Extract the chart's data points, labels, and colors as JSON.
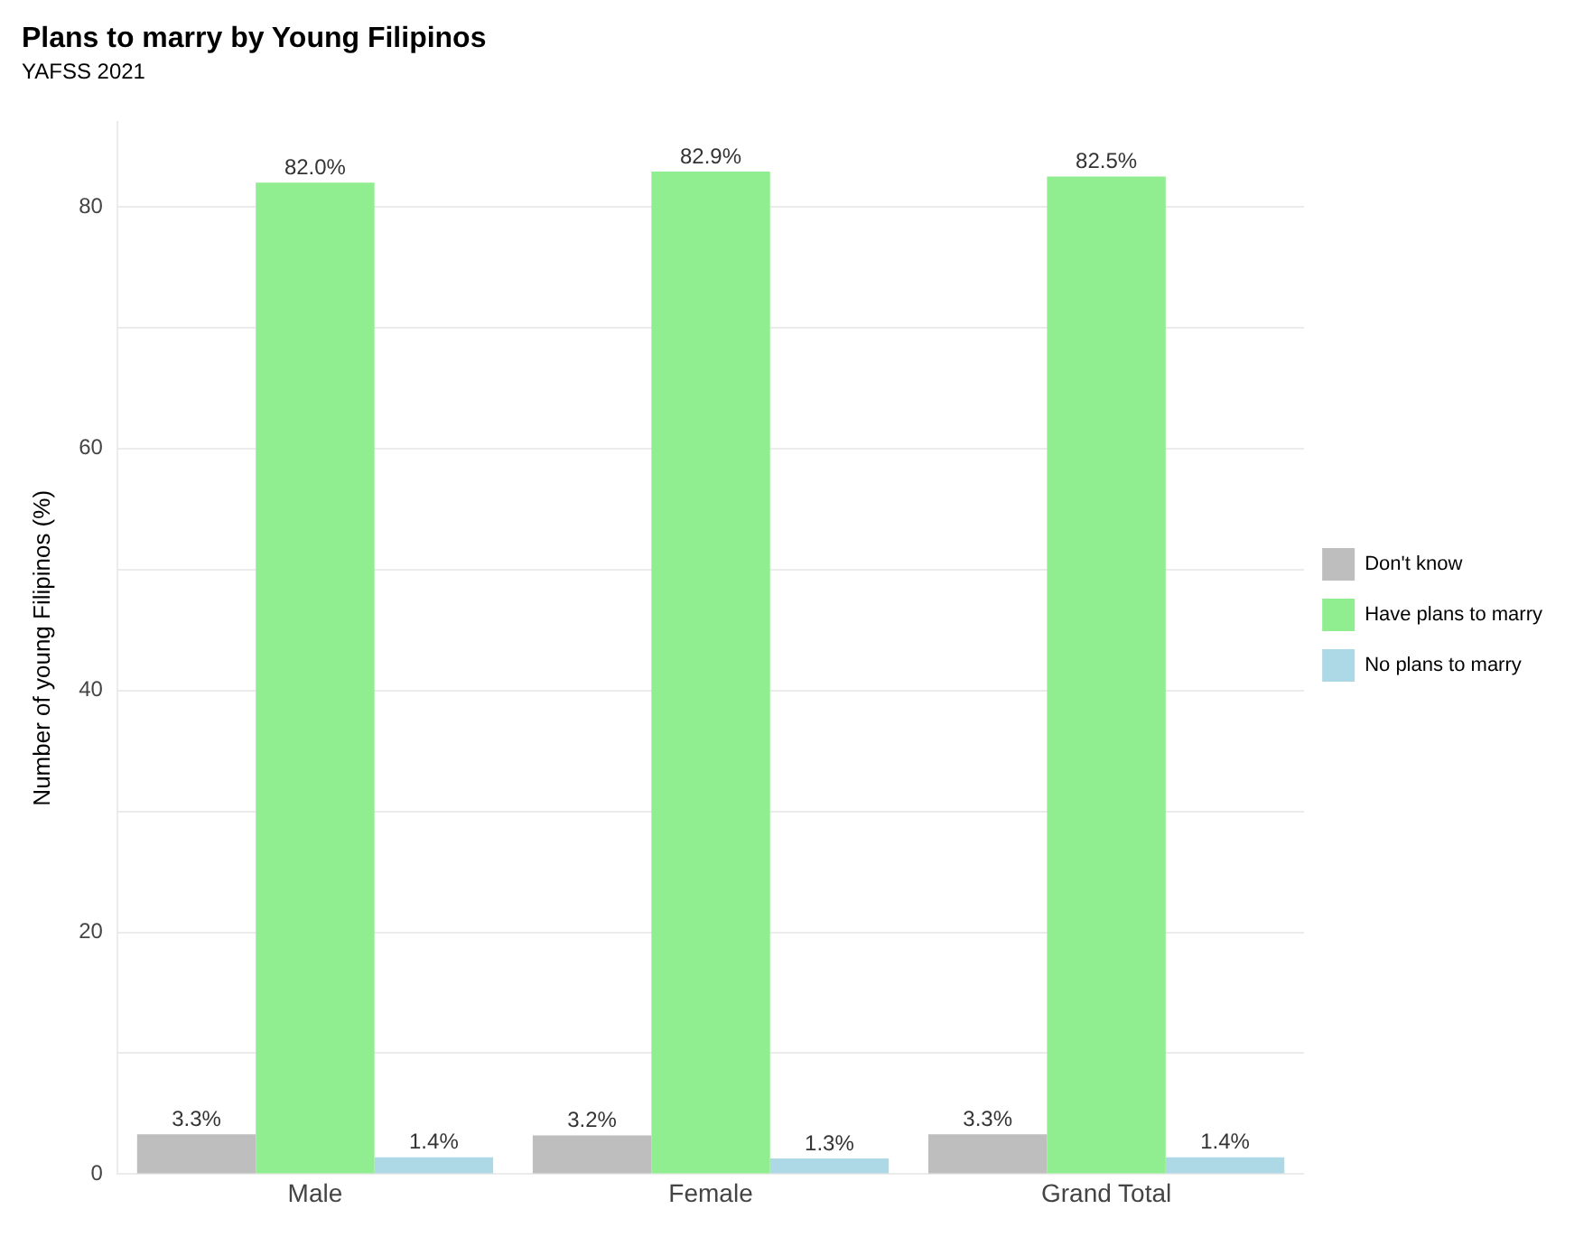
{
  "chart_data": {
    "type": "bar",
    "title": "Plans to marry by Young Filipinos",
    "subtitle": "YAFSS 2021",
    "ylabel": "Number of young Filipinos (%)",
    "categories": [
      "Male",
      "Female",
      "Grand Total"
    ],
    "series": [
      {
        "name": "Don't know",
        "color": "#bebebe",
        "values": [
          3.3,
          3.2,
          3.3
        ],
        "value_labels": [
          "3.3%",
          "3.2%",
          "3.3%"
        ]
      },
      {
        "name": "Have plans to marry",
        "color": "#90ee90",
        "values": [
          82.0,
          82.9,
          82.5
        ],
        "value_labels": [
          "82.0%",
          "82.9%",
          "82.5%"
        ]
      },
      {
        "name": "No plans to marry",
        "color": "#add8e6",
        "values": [
          1.4,
          1.3,
          1.4
        ],
        "value_labels": [
          "1.4%",
          "1.3%",
          "1.4%"
        ]
      }
    ],
    "ylim": [
      0,
      87
    ],
    "yticks": [
      0,
      {
        "value": 10,
        "label": null
      },
      20,
      {
        "value": 30,
        "label": null
      },
      40,
      {
        "value": 50,
        "label": null
      },
      60,
      {
        "value": 70,
        "label": null
      },
      80
    ],
    "grid": "y",
    "legend": "right"
  }
}
